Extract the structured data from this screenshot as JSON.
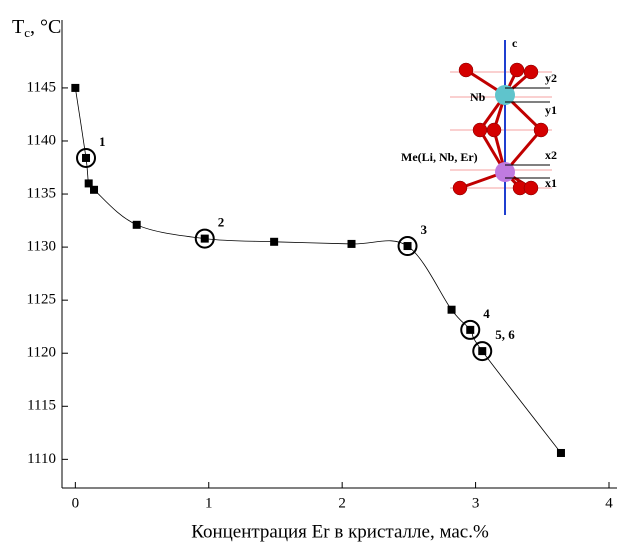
{
  "chart_data": {
    "type": "line",
    "ylabel": [
      "T",
      "c",
      ", °C"
    ],
    "xlabel": "Концентрация Er в кристалле, мас.%",
    "x": [
      0,
      0.08,
      0.1,
      0.14,
      0.46,
      0.97,
      1.49,
      2.07,
      2.49,
      2.82,
      2.96,
      3.05,
      3.64
    ],
    "series": [
      {
        "color": "#000000",
        "values": [
          1145,
          1138.4,
          1136.0,
          1135.4,
          1132.1,
          1130.8,
          1130.5,
          1130.3,
          1130.1,
          1124.1,
          1122.2,
          1120.2,
          1110.6
        ]
      }
    ],
    "annotations": [
      {
        "text": "1",
        "x": 0.08,
        "y": 1138.4
      },
      {
        "text": "2",
        "x": 0.97,
        "y": 1130.8
      },
      {
        "text": "3",
        "x": 2.49,
        "y": 1130.1
      },
      {
        "text": "4",
        "x": 2.96,
        "y": 1122.2
      },
      {
        "text": "5, 6",
        "x": 3.05,
        "y": 1120.2
      }
    ],
    "xlim": [
      -0.1,
      4.06
    ],
    "ylim": [
      1107.3,
      1151.4
    ],
    "xticks": [
      0,
      1,
      2,
      3,
      4
    ],
    "yticks": [
      1110,
      1115,
      1120,
      1125,
      1130,
      1135,
      1140,
      1145
    ],
    "grid": false,
    "inset_labels": {
      "axis": "c",
      "nb": "Nb",
      "y2": "y2",
      "y1": "y1",
      "me": "Me(Li, Nb, Er)",
      "x2": "x2",
      "x1": "x1"
    }
  }
}
